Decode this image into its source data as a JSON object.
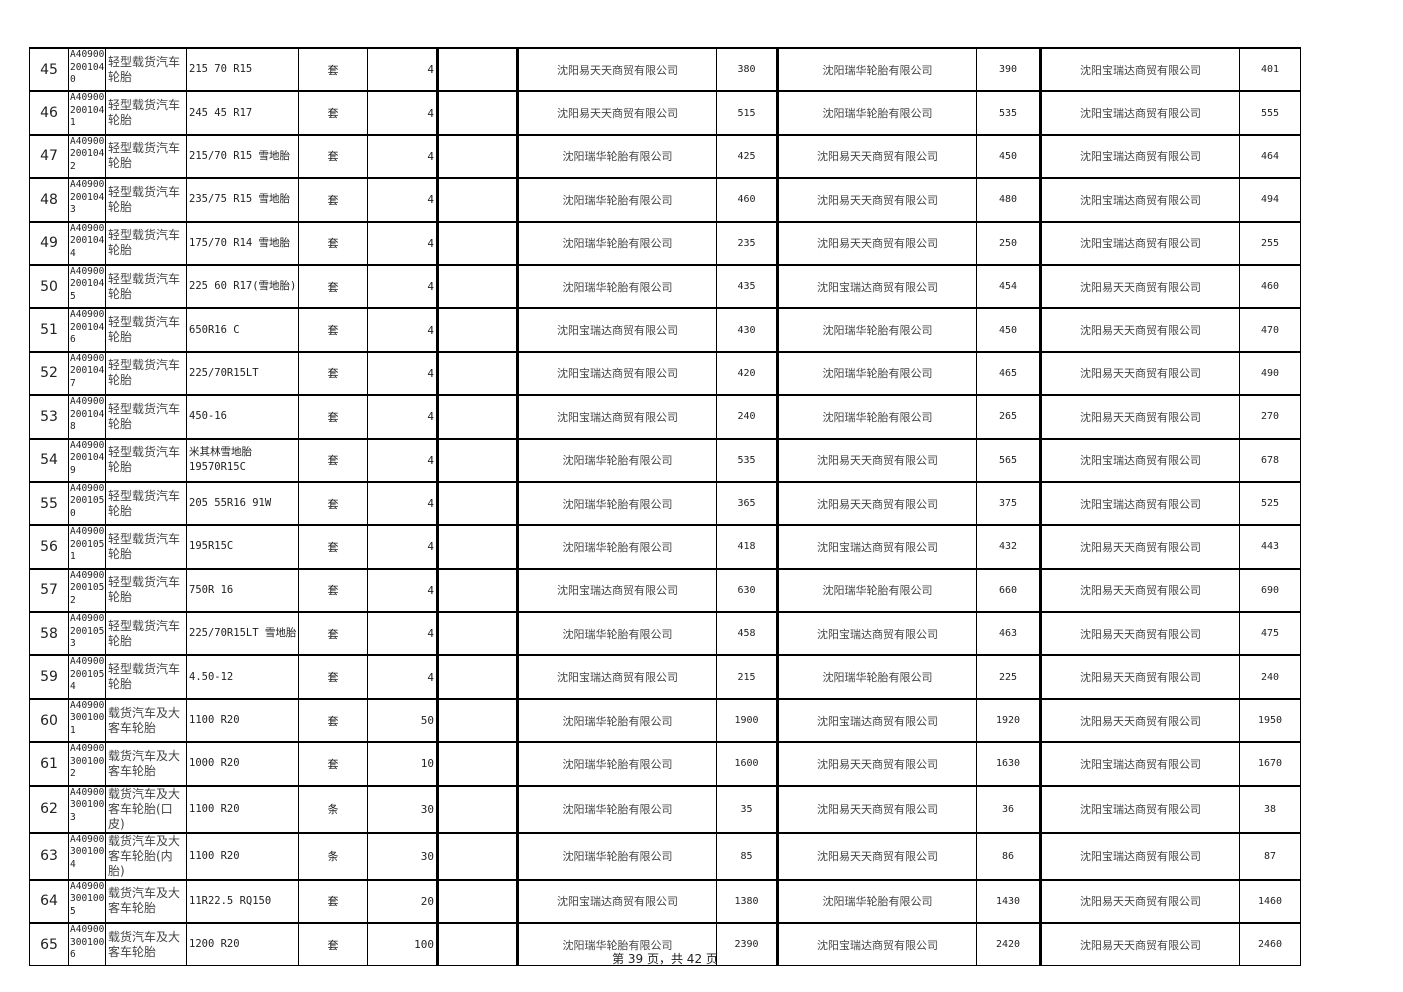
{
  "rows": [
    {
      "no": "45",
      "code": "A409002001040",
      "name": "轻型载货汽车轮胎",
      "spec": "215 70 R15",
      "unit": "套",
      "qty": "4",
      "s1": "沈阳易天天商贸有限公司",
      "p1": "380",
      "s2": "沈阳瑞华轮胎有限公司",
      "p2": "390",
      "s3": "沈阳宝瑞达商贸有限公司",
      "p3": "401"
    },
    {
      "no": "46",
      "code": "A409002001041",
      "name": "轻型载货汽车轮胎",
      "spec": "245 45 R17",
      "unit": "套",
      "qty": "4",
      "s1": "沈阳易天天商贸有限公司",
      "p1": "515",
      "s2": "沈阳瑞华轮胎有限公司",
      "p2": "535",
      "s3": "沈阳宝瑞达商贸有限公司",
      "p3": "555"
    },
    {
      "no": "47",
      "code": "A409002001042",
      "name": "轻型载货汽车轮胎",
      "spec": "215/70 R15 雪地胎",
      "unit": "套",
      "qty": "4",
      "s1": "沈阳瑞华轮胎有限公司",
      "p1": "425",
      "s2": "沈阳易天天商贸有限公司",
      "p2": "450",
      "s3": "沈阳宝瑞达商贸有限公司",
      "p3": "464"
    },
    {
      "no": "48",
      "code": "A409002001043",
      "name": "轻型载货汽车轮胎",
      "spec": "235/75 R15 雪地胎",
      "unit": "套",
      "qty": "4",
      "s1": "沈阳瑞华轮胎有限公司",
      "p1": "460",
      "s2": "沈阳易天天商贸有限公司",
      "p2": "480",
      "s3": "沈阳宝瑞达商贸有限公司",
      "p3": "494"
    },
    {
      "no": "49",
      "code": "A409002001044",
      "name": "轻型载货汽车轮胎",
      "spec": "175/70 R14 雪地胎",
      "unit": "套",
      "qty": "4",
      "s1": "沈阳瑞华轮胎有限公司",
      "p1": "235",
      "s2": "沈阳易天天商贸有限公司",
      "p2": "250",
      "s3": "沈阳宝瑞达商贸有限公司",
      "p3": "255"
    },
    {
      "no": "50",
      "code": "A409002001045",
      "name": "轻型载货汽车轮胎",
      "spec": "225 60 R17(雪地胎)",
      "unit": "套",
      "qty": "4",
      "s1": "沈阳瑞华轮胎有限公司",
      "p1": "435",
      "s2": "沈阳宝瑞达商贸有限公司",
      "p2": "454",
      "s3": "沈阳易天天商贸有限公司",
      "p3": "460"
    },
    {
      "no": "51",
      "code": "A409002001046",
      "name": "轻型载货汽车轮胎",
      "spec": "650R16 C",
      "unit": "套",
      "qty": "4",
      "s1": "沈阳宝瑞达商贸有限公司",
      "p1": "430",
      "s2": "沈阳瑞华轮胎有限公司",
      "p2": "450",
      "s3": "沈阳易天天商贸有限公司",
      "p3": "470"
    },
    {
      "no": "52",
      "code": "A409002001047",
      "name": "轻型载货汽车轮胎",
      "spec": "225/70R15LT",
      "unit": "套",
      "qty": "4",
      "s1": "沈阳宝瑞达商贸有限公司",
      "p1": "420",
      "s2": "沈阳瑞华轮胎有限公司",
      "p2": "465",
      "s3": "沈阳易天天商贸有限公司",
      "p3": "490"
    },
    {
      "no": "53",
      "code": "A409002001048",
      "name": "轻型载货汽车轮胎",
      "spec": "450-16",
      "unit": "套",
      "qty": "4",
      "s1": "沈阳宝瑞达商贸有限公司",
      "p1": "240",
      "s2": "沈阳瑞华轮胎有限公司",
      "p2": "265",
      "s3": "沈阳易天天商贸有限公司",
      "p3": "270"
    },
    {
      "no": "54",
      "code": "A409002001049",
      "name": "轻型载货汽车轮胎",
      "spec": "米其林雪地胎 19570R15C",
      "unit": "套",
      "qty": "4",
      "s1": "沈阳瑞华轮胎有限公司",
      "p1": "535",
      "s2": "沈阳易天天商贸有限公司",
      "p2": "565",
      "s3": "沈阳宝瑞达商贸有限公司",
      "p3": "678"
    },
    {
      "no": "55",
      "code": "A409002001050",
      "name": "轻型载货汽车轮胎",
      "spec": "205 55R16 91W",
      "unit": "套",
      "qty": "4",
      "s1": "沈阳瑞华轮胎有限公司",
      "p1": "365",
      "s2": "沈阳易天天商贸有限公司",
      "p2": "375",
      "s3": "沈阳宝瑞达商贸有限公司",
      "p3": "525"
    },
    {
      "no": "56",
      "code": "A409002001051",
      "name": "轻型载货汽车轮胎",
      "spec": "195R15C",
      "unit": "套",
      "qty": "4",
      "s1": "沈阳瑞华轮胎有限公司",
      "p1": "418",
      "s2": "沈阳宝瑞达商贸有限公司",
      "p2": "432",
      "s3": "沈阳易天天商贸有限公司",
      "p3": "443"
    },
    {
      "no": "57",
      "code": "A409002001052",
      "name": "轻型载货汽车轮胎",
      "spec": "750R 16",
      "unit": "套",
      "qty": "4",
      "s1": "沈阳宝瑞达商贸有限公司",
      "p1": "630",
      "s2": "沈阳瑞华轮胎有限公司",
      "p2": "660",
      "s3": "沈阳易天天商贸有限公司",
      "p3": "690"
    },
    {
      "no": "58",
      "code": "A409002001053",
      "name": "轻型载货汽车轮胎",
      "spec": "225/70R15LT  雪地胎",
      "unit": "套",
      "qty": "4",
      "s1": "沈阳瑞华轮胎有限公司",
      "p1": "458",
      "s2": "沈阳宝瑞达商贸有限公司",
      "p2": "463",
      "s3": "沈阳易天天商贸有限公司",
      "p3": "475"
    },
    {
      "no": "59",
      "code": "A409002001054",
      "name": "轻型载货汽车轮胎",
      "spec": "4.50-12",
      "unit": "套",
      "qty": "4",
      "s1": "沈阳宝瑞达商贸有限公司",
      "p1": "215",
      "s2": "沈阳瑞华轮胎有限公司",
      "p2": "225",
      "s3": "沈阳易天天商贸有限公司",
      "p3": "240"
    },
    {
      "no": "60",
      "code": "A409003001001",
      "name": "载货汽车及大客车轮胎",
      "spec": "1100 R20",
      "unit": "套",
      "qty": "50",
      "s1": "沈阳瑞华轮胎有限公司",
      "p1": "1900",
      "s2": "沈阳宝瑞达商贸有限公司",
      "p2": "1920",
      "s3": "沈阳易天天商贸有限公司",
      "p3": "1950"
    },
    {
      "no": "61",
      "code": "A409003001002",
      "name": "载货汽车及大客车轮胎",
      "spec": "1000 R20",
      "unit": "套",
      "qty": "10",
      "s1": "沈阳瑞华轮胎有限公司",
      "p1": "1600",
      "s2": "沈阳易天天商贸有限公司",
      "p2": "1630",
      "s3": "沈阳宝瑞达商贸有限公司",
      "p3": "1670"
    },
    {
      "no": "62",
      "code": "A409003001003",
      "name": "载货汽车及大客车轮胎(口皮)",
      "spec": "1100 R20",
      "unit": "条",
      "qty": "30",
      "s1": "沈阳瑞华轮胎有限公司",
      "p1": "35",
      "s2": "沈阳易天天商贸有限公司",
      "p2": "36",
      "s3": "沈阳宝瑞达商贸有限公司",
      "p3": "38"
    },
    {
      "no": "63",
      "code": "A409003001004",
      "name": "载货汽车及大客车轮胎(内胎)",
      "spec": "1100 R20",
      "unit": "条",
      "qty": "30",
      "s1": "沈阳瑞华轮胎有限公司",
      "p1": "85",
      "s2": "沈阳易天天商贸有限公司",
      "p2": "86",
      "s3": "沈阳宝瑞达商贸有限公司",
      "p3": "87"
    },
    {
      "no": "64",
      "code": "A409003001005",
      "name": "载货汽车及大客车轮胎",
      "spec": "11R22.5 RQ150",
      "unit": "套",
      "qty": "20",
      "s1": "沈阳宝瑞达商贸有限公司",
      "p1": "1380",
      "s2": "沈阳瑞华轮胎有限公司",
      "p2": "1430",
      "s3": "沈阳易天天商贸有限公司",
      "p3": "1460"
    },
    {
      "no": "65",
      "code": "A409003001006",
      "name": "载货汽车及大客车轮胎",
      "spec": "1200 R20",
      "unit": "套",
      "qty": "100",
      "s1": "沈阳瑞华轮胎有限公司",
      "p1": "2390",
      "s2": "沈阳宝瑞达商贸有限公司",
      "p2": "2420",
      "s3": "沈阳易天天商贸有限公司",
      "p3": "2460"
    }
  ],
  "footer": {
    "page_text": "第 39 页，共 42 页"
  }
}
